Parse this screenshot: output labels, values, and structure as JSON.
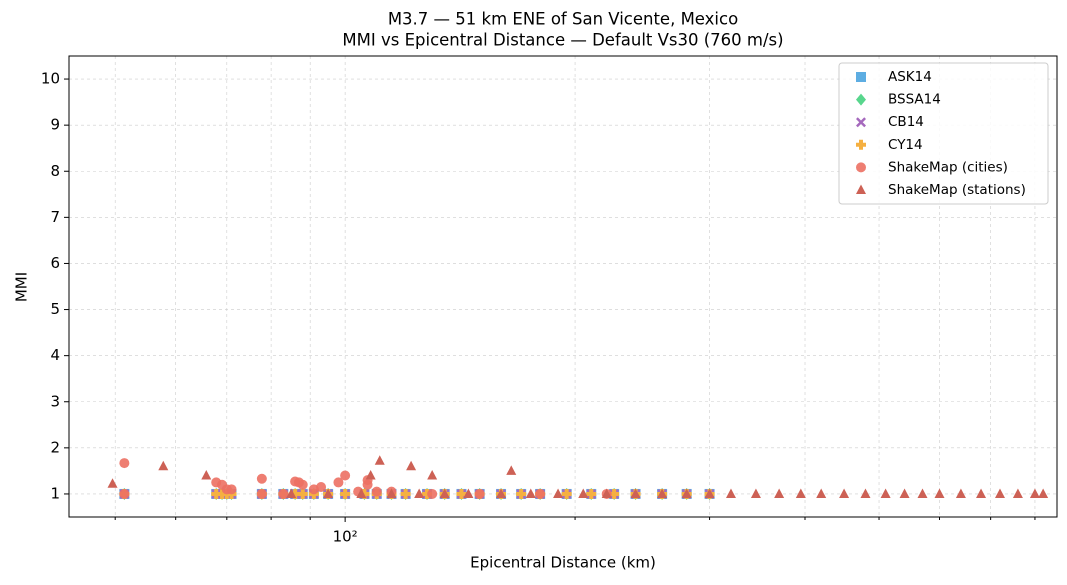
{
  "chart_data": {
    "type": "scatter",
    "title": "M3.7 — 51 km ENE of San Vicente, Mexico",
    "subtitle": "MMI vs Epicentral Distance — Default Vs30 (760 m/s)",
    "x_label": "Epicentral Distance (km)",
    "y_label": "MMI",
    "x_scale": "log",
    "grid": true,
    "legend": "upper right",
    "xlim": [
      43.5,
      855
    ],
    "xticks": [
      {
        "value": 100,
        "label": "10²"
      }
    ],
    "xminor": [
      50,
      60,
      70,
      80,
      90,
      200,
      300,
      400,
      500,
      600,
      700,
      800
    ],
    "ylim": [
      0.5,
      10.5
    ],
    "yticks": [
      1,
      2,
      3,
      4,
      5,
      6,
      7,
      8,
      9,
      10
    ],
    "series": [
      {
        "name": "ASK14",
        "color": "#5dade2",
        "marker": "square",
        "x": [
          51.4,
          67.8,
          69,
          70,
          71,
          77.8,
          83,
          86,
          88,
          91,
          95,
          100,
          106,
          110,
          115,
          120,
          128,
          135,
          142,
          150,
          160,
          170,
          180,
          195,
          210,
          225,
          240,
          260,
          280,
          300
        ],
        "values": [
          1,
          1,
          1,
          1,
          1,
          1,
          1,
          1,
          1,
          1,
          1,
          1,
          1,
          1,
          1,
          1,
          1,
          1,
          1,
          1,
          1,
          1,
          1,
          1,
          1,
          1,
          1,
          1,
          1,
          1
        ]
      },
      {
        "name": "BSSA14",
        "color": "#58d68d",
        "marker": "diamond",
        "x": [
          51.4,
          67.8,
          69,
          70,
          71,
          77.8,
          83,
          86,
          88,
          91,
          95,
          100,
          106,
          110,
          115,
          120,
          128,
          135,
          142,
          150,
          160,
          170,
          180,
          195,
          210,
          225,
          240,
          260,
          280,
          300
        ],
        "values": [
          1,
          1,
          1,
          1,
          1,
          1,
          1,
          1,
          1,
          1,
          1,
          1,
          1,
          1,
          1,
          1,
          1,
          1,
          1,
          1,
          1,
          1,
          1,
          1,
          1,
          1,
          1,
          1,
          1,
          1
        ]
      },
      {
        "name": "CB14",
        "color": "#a569bd",
        "marker": "x",
        "x": [
          51.4,
          67.8,
          69,
          70,
          71,
          77.8,
          83,
          86,
          88,
          91,
          95,
          100,
          106,
          110,
          115,
          120,
          128,
          135,
          142,
          150,
          160,
          170,
          180,
          195,
          210,
          225,
          240,
          260,
          280,
          300
        ],
        "values": [
          1,
          1,
          1,
          1,
          1,
          1,
          1,
          1,
          1,
          1,
          1,
          1,
          1,
          1,
          1,
          1,
          1,
          1,
          1,
          1,
          1,
          1,
          1,
          1,
          1,
          1,
          1,
          1,
          1,
          1
        ]
      },
      {
        "name": "CY14",
        "color": "#f5b041",
        "marker": "plus",
        "x": [
          51.4,
          67.8,
          69,
          70,
          71,
          77.8,
          83,
          86,
          88,
          91,
          95,
          100,
          106,
          110,
          115,
          120,
          128,
          135,
          142,
          150,
          160,
          170,
          180,
          195,
          210,
          225,
          240,
          260,
          280,
          300
        ],
        "values": [
          1,
          1,
          1,
          1,
          1,
          1,
          1,
          1,
          1,
          1,
          1,
          1,
          1,
          1,
          1,
          1,
          1,
          1,
          1,
          1,
          1,
          1,
          1,
          1,
          1,
          1,
          1,
          1,
          1,
          1
        ]
      },
      {
        "name": "ShakeMap (cities)",
        "color": "#ec7063",
        "marker": "circle",
        "x": [
          51.4,
          51.4,
          67.8,
          69,
          70,
          71,
          77.8,
          77.8,
          83,
          86,
          87,
          88,
          91,
          93,
          98,
          100,
          104,
          107,
          107,
          110,
          115,
          130,
          150,
          180,
          220
        ],
        "values": [
          1.67,
          1,
          1.25,
          1.2,
          1.1,
          1.1,
          1.33,
          1,
          1,
          1.27,
          1.25,
          1.2,
          1.1,
          1.15,
          1.25,
          1.4,
          1.05,
          1.3,
          1.2,
          1.05,
          1.05,
          1,
          1,
          1,
          1
        ]
      },
      {
        "name": "ShakeMap (stations)",
        "color": "#cd6155",
        "marker": "triangle",
        "x": [
          49.6,
          57.8,
          65.8,
          108,
          111,
          122,
          130,
          165,
          85,
          95,
          105,
          115,
          125,
          135,
          145,
          160,
          175,
          190,
          205,
          220,
          240,
          260,
          280,
          300,
          320,
          345,
          370,
          395,
          420,
          450,
          480,
          510,
          540,
          570,
          600,
          640,
          680,
          720,
          760,
          800,
          820
        ],
        "values": [
          1.22,
          1.6,
          1.4,
          1.4,
          1.72,
          1.6,
          1.4,
          1.5,
          1,
          1,
          1,
          1,
          1,
          1,
          1,
          1,
          1,
          1,
          1,
          1,
          1,
          1,
          1,
          1,
          1,
          1,
          1,
          1,
          1,
          1,
          1,
          1,
          1,
          1,
          1,
          1,
          1,
          1,
          1,
          1,
          1
        ]
      }
    ]
  }
}
